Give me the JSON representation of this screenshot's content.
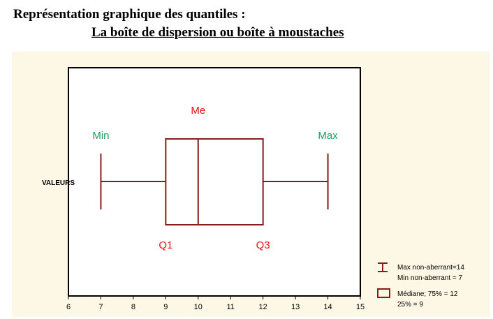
{
  "header": {
    "title": "Représentation graphique des quantiles :",
    "subtitle": "La boîte de dispersion ou boîte à moustaches"
  },
  "colors": {
    "box": "#8b1a1a",
    "annotation_red": "#e3101a",
    "annotation_green": "#1a9e5a",
    "background": "#fdf8e6",
    "grid": "#c8c8c8"
  },
  "chart_data": {
    "type": "box",
    "category": "VALEURS",
    "min": 7,
    "q1": 9,
    "median": 10,
    "q3": 12,
    "max": 14,
    "xlim": [
      6,
      15
    ],
    "xticks": [
      6,
      7,
      8,
      9,
      10,
      11,
      12,
      13,
      14,
      15
    ],
    "grid": "vertical dotted",
    "annotations": {
      "min": "Min",
      "max": "Max",
      "median": "Me",
      "q1": "Q1",
      "q3": "Q3"
    },
    "legend": {
      "position": "bottom-right",
      "whisker_lines": [
        "Max non-aberrant=14",
        "Min non-aberrant = 7"
      ],
      "box_lines": [
        "Médiane; 75% = 12",
        "25% = 9"
      ]
    }
  }
}
